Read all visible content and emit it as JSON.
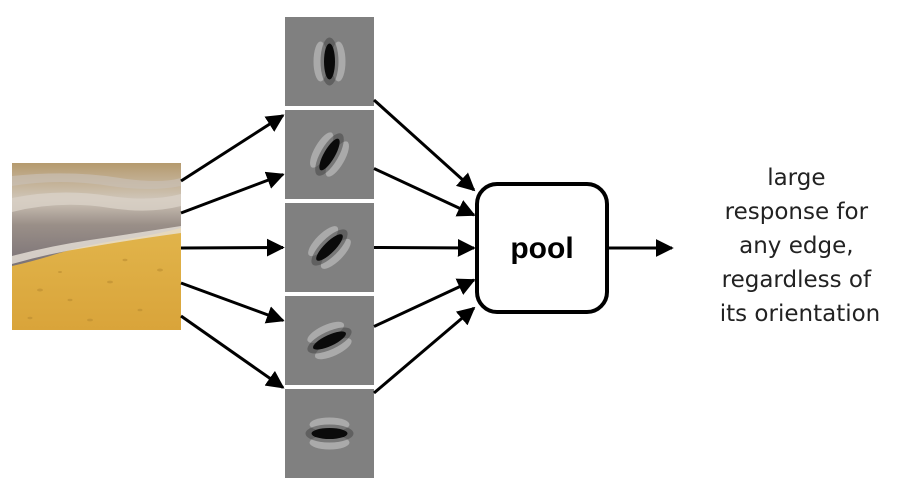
{
  "pool": {
    "label": "pool"
  },
  "caption": {
    "lines": [
      "large",
      "response for",
      "any edge,",
      "regardless of",
      "its orientation"
    ]
  },
  "filters": {
    "count": 5,
    "orientations_deg": [
      90,
      60,
      45,
      25,
      0
    ]
  },
  "input_image": {
    "subject": "beach-waves-photo"
  },
  "colors": {
    "filter_background": "#808080",
    "arrow": "#000000",
    "sand": "#e2b244",
    "foam": "#c7bfb6",
    "wave_dark": "#6c6a6e"
  }
}
